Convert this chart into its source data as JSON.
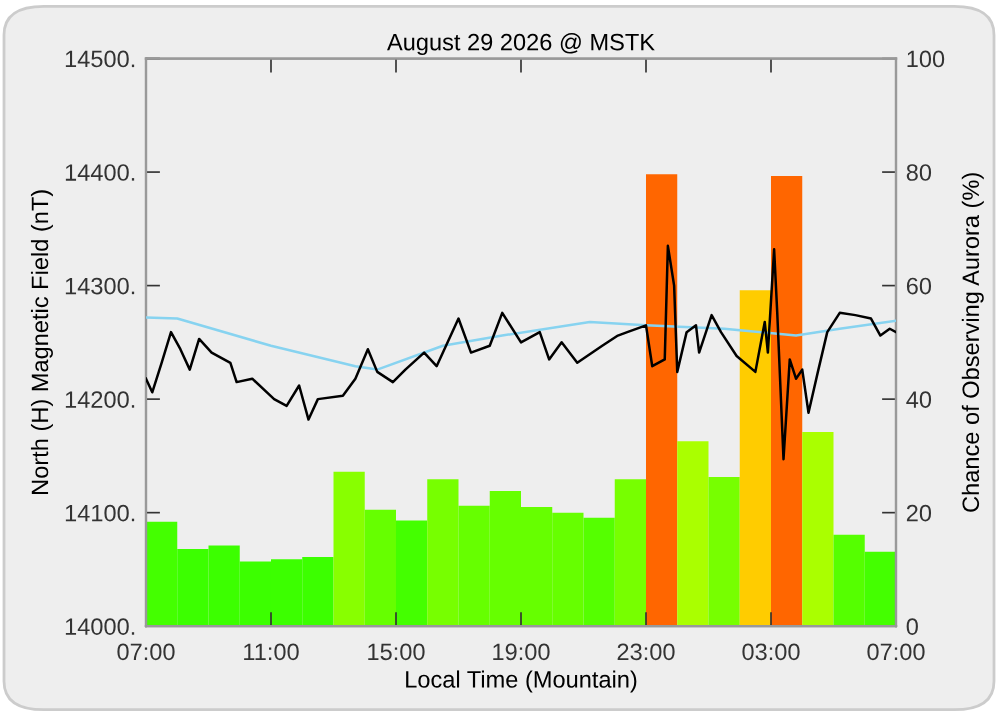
{
  "chart_data": {
    "type": "line",
    "title": "August 29 2026 @ MSTK",
    "xlabel": "Local Time (Mountain)",
    "ylabel": "North (H) Magnetic Field (nT)",
    "y2label": "Chance of Observing Aurora (%)",
    "xlim": [
      "2026-08-29T07:00",
      "2026-08-30T07:00"
    ],
    "xticks": [
      {
        "value": "2026-08-29T07:00",
        "label": "07:00"
      },
      {
        "value": "2026-08-29T11:00",
        "label": "11:00"
      },
      {
        "value": "2026-08-29T15:00",
        "label": "15:00"
      },
      {
        "value": "2026-08-29T19:00",
        "label": "19:00"
      },
      {
        "value": "2026-08-29T23:00",
        "label": "23:00"
      },
      {
        "value": "2026-08-30T03:00",
        "label": "03:00"
      },
      {
        "value": "2026-08-30T07:00",
        "label": "07:00"
      }
    ],
    "ylim": [
      14000,
      14500
    ],
    "yticks": [
      {
        "value": 14000,
        "label": "14000."
      },
      {
        "value": 14100,
        "label": "14100."
      },
      {
        "value": 14200,
        "label": "14200."
      },
      {
        "value": 14300,
        "label": "14300."
      },
      {
        "value": 14400,
        "label": "14400."
      },
      {
        "value": 14500,
        "label": "14500."
      }
    ],
    "y2lim": [
      0,
      100
    ],
    "y2ticks": [
      0,
      20,
      40,
      60,
      80,
      100
    ],
    "grid": false,
    "legend": false,
    "series": [
      {
        "type": "bar",
        "axis": "y2",
        "x": [
          "2026-08-29T07:30",
          "2026-08-29T08:30",
          "2026-08-29T09:30",
          "2026-08-29T10:30",
          "2026-08-29T11:30",
          "2026-08-29T12:30",
          "2026-08-29T13:30",
          "2026-08-29T14:30",
          "2026-08-29T15:30",
          "2026-08-29T16:30",
          "2026-08-29T17:30",
          "2026-08-29T18:30",
          "2026-08-29T19:30",
          "2026-08-29T20:30",
          "2026-08-29T21:30",
          "2026-08-29T22:30",
          "2026-08-29T23:30",
          "2026-08-30T00:30",
          "2026-08-30T01:30",
          "2026-08-30T02:30",
          "2026-08-30T03:30",
          "2026-08-30T04:30",
          "2026-08-30T05:30",
          "2026-08-30T06:30"
        ],
        "values": [
          18.4,
          13.6,
          14.2,
          11.4,
          11.8,
          12.2,
          27.2,
          20.5,
          18.6,
          25.9,
          21.2,
          23.8,
          21.0,
          20.0,
          19.1,
          25.9,
          79.6,
          32.6,
          26.3,
          59.2,
          79.3,
          34.2,
          16.1,
          13.1
        ],
        "colors": [
          "#44ff00",
          "#3cff00",
          "#3cff00",
          "#3cff00",
          "#3cff00",
          "#3cff00",
          "#88ff00",
          "#66ff00",
          "#44ff00",
          "#77ff00",
          "#66ff00",
          "#66ff00",
          "#66ff00",
          "#66ff00",
          "#55ff00",
          "#77ff00",
          "#ff6600",
          "#aaff00",
          "#77ff00",
          "#ffcc00",
          "#ff6600",
          "#aaff00",
          "#55ff00",
          "#44ff00"
        ]
      },
      {
        "color": "#87d3f0",
        "x": [
          "2026-08-29T07:00",
          "2026-08-29T08:00",
          "2026-08-29T11:00",
          "2026-08-29T13:42",
          "2026-08-29T14:24",
          "2026-08-29T16:30",
          "2026-08-29T18:24",
          "2026-08-29T21:12",
          "2026-08-29T23:00",
          "2026-08-30T01:30",
          "2026-08-30T03:48",
          "2026-08-30T05:12",
          "2026-08-30T07:00"
        ],
        "values": [
          14272,
          14271,
          14247,
          14229,
          14226,
          14247,
          14256,
          14268,
          14265,
          14262,
          14256,
          14262,
          14269
        ]
      },
      {
        "color": "#000000",
        "x": [
          "2026-08-29T07:00",
          "2026-08-29T07:12",
          "2026-08-29T07:30",
          "2026-08-29T07:48",
          "2026-08-29T08:06",
          "2026-08-29T08:24",
          "2026-08-29T08:42",
          "2026-08-29T09:06",
          "2026-08-29T09:42",
          "2026-08-29T09:54",
          "2026-08-29T10:24",
          "2026-08-29T11:06",
          "2026-08-29T11:30",
          "2026-08-29T11:54",
          "2026-08-29T12:12",
          "2026-08-29T12:30",
          "2026-08-29T13:18",
          "2026-08-29T13:42",
          "2026-08-29T14:06",
          "2026-08-29T14:24",
          "2026-08-29T14:54",
          "2026-08-29T15:18",
          "2026-08-29T15:54",
          "2026-08-29T16:18",
          "2026-08-29T17:00",
          "2026-08-29T17:24",
          "2026-08-29T18:00",
          "2026-08-29T18:24",
          "2026-08-29T19:00",
          "2026-08-29T19:36",
          "2026-08-29T19:54",
          "2026-08-29T20:18",
          "2026-08-29T20:48",
          "2026-08-29T21:36",
          "2026-08-29T22:06",
          "2026-08-29T22:24",
          "2026-08-29T23:00",
          "2026-08-29T23:12",
          "2026-08-29T23:36",
          "2026-08-29T23:42",
          "2026-08-29T23:54",
          "2026-08-30T00:00",
          "2026-08-30T00:18",
          "2026-08-30T00:36",
          "2026-08-30T00:42",
          "2026-08-30T01:06",
          "2026-08-30T01:24",
          "2026-08-30T01:54",
          "2026-08-30T02:30",
          "2026-08-30T02:48",
          "2026-08-30T02:54",
          "2026-08-30T03:06",
          "2026-08-30T03:12",
          "2026-08-30T03:24",
          "2026-08-30T03:36",
          "2026-08-30T03:48",
          "2026-08-30T04:00",
          "2026-08-30T04:12",
          "2026-08-30T04:30",
          "2026-08-30T04:48",
          "2026-08-30T05:12",
          "2026-08-30T05:42",
          "2026-08-30T06:12",
          "2026-08-30T06:30",
          "2026-08-30T06:48",
          "2026-08-30T07:00"
        ],
        "values": [
          14218,
          14206,
          14232,
          14259,
          14244,
          14226,
          14253,
          14241,
          14232,
          14215,
          14218,
          14200,
          14194,
          14212,
          14182,
          14200,
          14203,
          14218,
          14244,
          14224,
          14215,
          14226,
          14241,
          14229,
          14271,
          14241,
          14247,
          14276,
          14250,
          14259,
          14235,
          14250,
          14232,
          14247,
          14256,
          14259,
          14265,
          14229,
          14235,
          14335,
          14300,
          14224,
          14259,
          14265,
          14241,
          14274,
          14259,
          14238,
          14224,
          14268,
          14241,
          14332,
          14276,
          14147,
          14235,
          14218,
          14226,
          14188,
          14224,
          14259,
          14276,
          14274,
          14271,
          14256,
          14262,
          14259
        ]
      }
    ]
  }
}
